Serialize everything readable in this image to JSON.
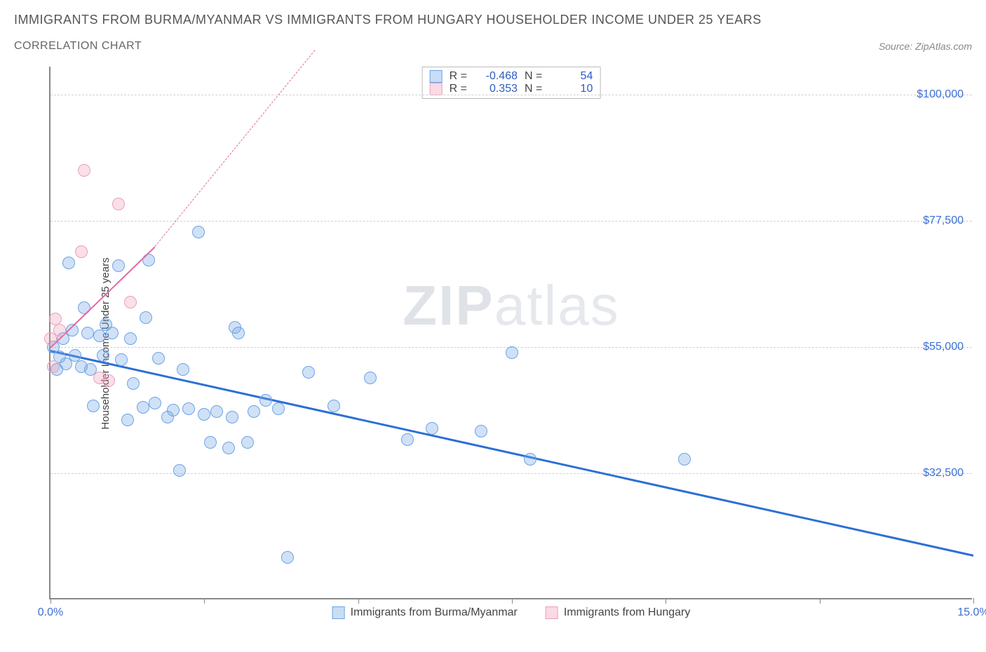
{
  "title": "IMMIGRANTS FROM BURMA/MYANMAR VS IMMIGRANTS FROM HUNGARY HOUSEHOLDER INCOME UNDER 25 YEARS",
  "subtitle": "CORRELATION CHART",
  "source": "Source: ZipAtlas.com",
  "watermark_a": "ZIP",
  "watermark_b": "atlas",
  "chart": {
    "type": "scatter",
    "background_color": "#ffffff",
    "grid_color": "#d0d0d0",
    "axis_color": "#888888",
    "x": {
      "min": 0.0,
      "max": 15.0,
      "ticks": [
        0.0,
        2.5,
        5.0,
        7.5,
        10.0,
        12.5,
        15.0
      ],
      "tick_labels": [
        "0.0%",
        "",
        "",
        "",
        "",
        "",
        "15.0%"
      ],
      "show_minor_marks": true
    },
    "y": {
      "min": 10000,
      "max": 105000,
      "ticks": [
        32500,
        55000,
        77500,
        100000
      ],
      "tick_labels": [
        "$32,500",
        "$55,000",
        "$77,500",
        "$100,000"
      ]
    },
    "y_axis_title": "Householder Income Under 25 years",
    "series": [
      {
        "name": "Immigrants from Burma/Myanmar",
        "color": "#6ba3e8",
        "fill": "rgba(120,170,230,0.35)",
        "marker_size": 18,
        "R": -0.468,
        "N": 54,
        "trend": {
          "x1": 0.0,
          "y1": 54500,
          "x2": 15.0,
          "y2": 18000,
          "style": "solid",
          "width": 2.5,
          "color": "#2c6fd6"
        },
        "points": [
          [
            0.05,
            55000
          ],
          [
            0.1,
            51000
          ],
          [
            0.15,
            53200
          ],
          [
            0.2,
            56500
          ],
          [
            0.25,
            52000
          ],
          [
            0.3,
            70000
          ],
          [
            0.35,
            58000
          ],
          [
            0.4,
            53500
          ],
          [
            0.5,
            51500
          ],
          [
            0.55,
            62000
          ],
          [
            0.6,
            57500
          ],
          [
            0.65,
            51000
          ],
          [
            0.7,
            44500
          ],
          [
            0.8,
            57000
          ],
          [
            0.85,
            53500
          ],
          [
            0.9,
            59000
          ],
          [
            1.0,
            57500
          ],
          [
            1.1,
            69500
          ],
          [
            1.15,
            52800
          ],
          [
            1.25,
            42000
          ],
          [
            1.3,
            56500
          ],
          [
            1.35,
            48500
          ],
          [
            1.5,
            44200
          ],
          [
            1.55,
            60200
          ],
          [
            1.6,
            70500
          ],
          [
            1.7,
            45000
          ],
          [
            1.75,
            53000
          ],
          [
            1.9,
            42500
          ],
          [
            2.0,
            43800
          ],
          [
            2.1,
            33000
          ],
          [
            2.15,
            51000
          ],
          [
            2.25,
            44000
          ],
          [
            2.4,
            75500
          ],
          [
            2.5,
            43000
          ],
          [
            2.6,
            38000
          ],
          [
            2.7,
            43500
          ],
          [
            2.9,
            37000
          ],
          [
            2.95,
            42500
          ],
          [
            3.0,
            58500
          ],
          [
            3.05,
            57500
          ],
          [
            3.2,
            38000
          ],
          [
            3.3,
            43500
          ],
          [
            3.5,
            45500
          ],
          [
            3.7,
            44000
          ],
          [
            3.85,
            17500
          ],
          [
            4.2,
            50500
          ],
          [
            4.6,
            44500
          ],
          [
            5.2,
            49500
          ],
          [
            5.8,
            38500
          ],
          [
            6.2,
            40500
          ],
          [
            7.0,
            40000
          ],
          [
            7.5,
            54000
          ],
          [
            7.8,
            35000
          ],
          [
            10.3,
            35000
          ]
        ]
      },
      {
        "name": "Immigrants from Hungary",
        "color": "#e8a0bc",
        "fill": "rgba(240,150,180,0.3)",
        "marker_size": 18,
        "R": 0.353,
        "N": 10,
        "trend": {
          "x1": 0.0,
          "y1": 55000,
          "x2": 1.7,
          "y2": 73000,
          "style": "solid",
          "extend_x2": 4.3,
          "extend_y2": 108000,
          "width": 2,
          "color": "#e36aa0"
        },
        "points": [
          [
            0.0,
            56500
          ],
          [
            0.05,
            51500
          ],
          [
            0.08,
            60000
          ],
          [
            0.15,
            58000
          ],
          [
            0.5,
            72000
          ],
          [
            0.55,
            86500
          ],
          [
            0.8,
            49500
          ],
          [
            0.95,
            49000
          ],
          [
            1.1,
            80500
          ],
          [
            1.3,
            63000
          ]
        ]
      }
    ],
    "legend_labels": {
      "blue": "Immigrants from Burma/Myanmar",
      "pink": "Immigrants from Hungary"
    },
    "stats_labels": {
      "R": "R =",
      "N": "N ="
    }
  }
}
